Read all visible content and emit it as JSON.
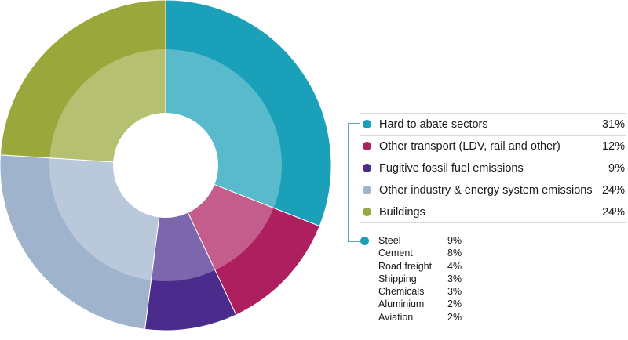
{
  "chart_data": {
    "type": "pie",
    "variant": "donut",
    "series": [
      {
        "label": "Hard to abate sectors",
        "value": 31,
        "display": "31%",
        "color": "#1aa0b8"
      },
      {
        "label": "Other transport (LDV, rail and other)",
        "value": 12,
        "display": "12%",
        "color": "#ad1f5f"
      },
      {
        "label": "Fugitive fossil fuel emissions",
        "value": 9,
        "display": "9%",
        "color": "#4b2c8c"
      },
      {
        "label": "Other industry & energy system emissions",
        "value": 24,
        "display": "24%",
        "color": "#9fb3cc"
      },
      {
        "label": "Buildings",
        "value": 24,
        "display": "24%",
        "color": "#9aa83b"
      }
    ],
    "breakdown": {
      "parent": "Hard to abate sectors",
      "items": [
        {
          "label": "Steel",
          "display": "9%",
          "value": 9
        },
        {
          "label": "Cement",
          "display": "8%",
          "value": 8
        },
        {
          "label": "Road freight",
          "display": "4%",
          "value": 4
        },
        {
          "label": "Shipping",
          "display": "3%",
          "value": 3
        },
        {
          "label": "Chemicals",
          "display": "3%",
          "value": 3
        },
        {
          "label": "Aluminium",
          "display": "2%",
          "value": 2
        },
        {
          "label": "Aviation",
          "display": "2%",
          "value": 2
        }
      ]
    }
  }
}
